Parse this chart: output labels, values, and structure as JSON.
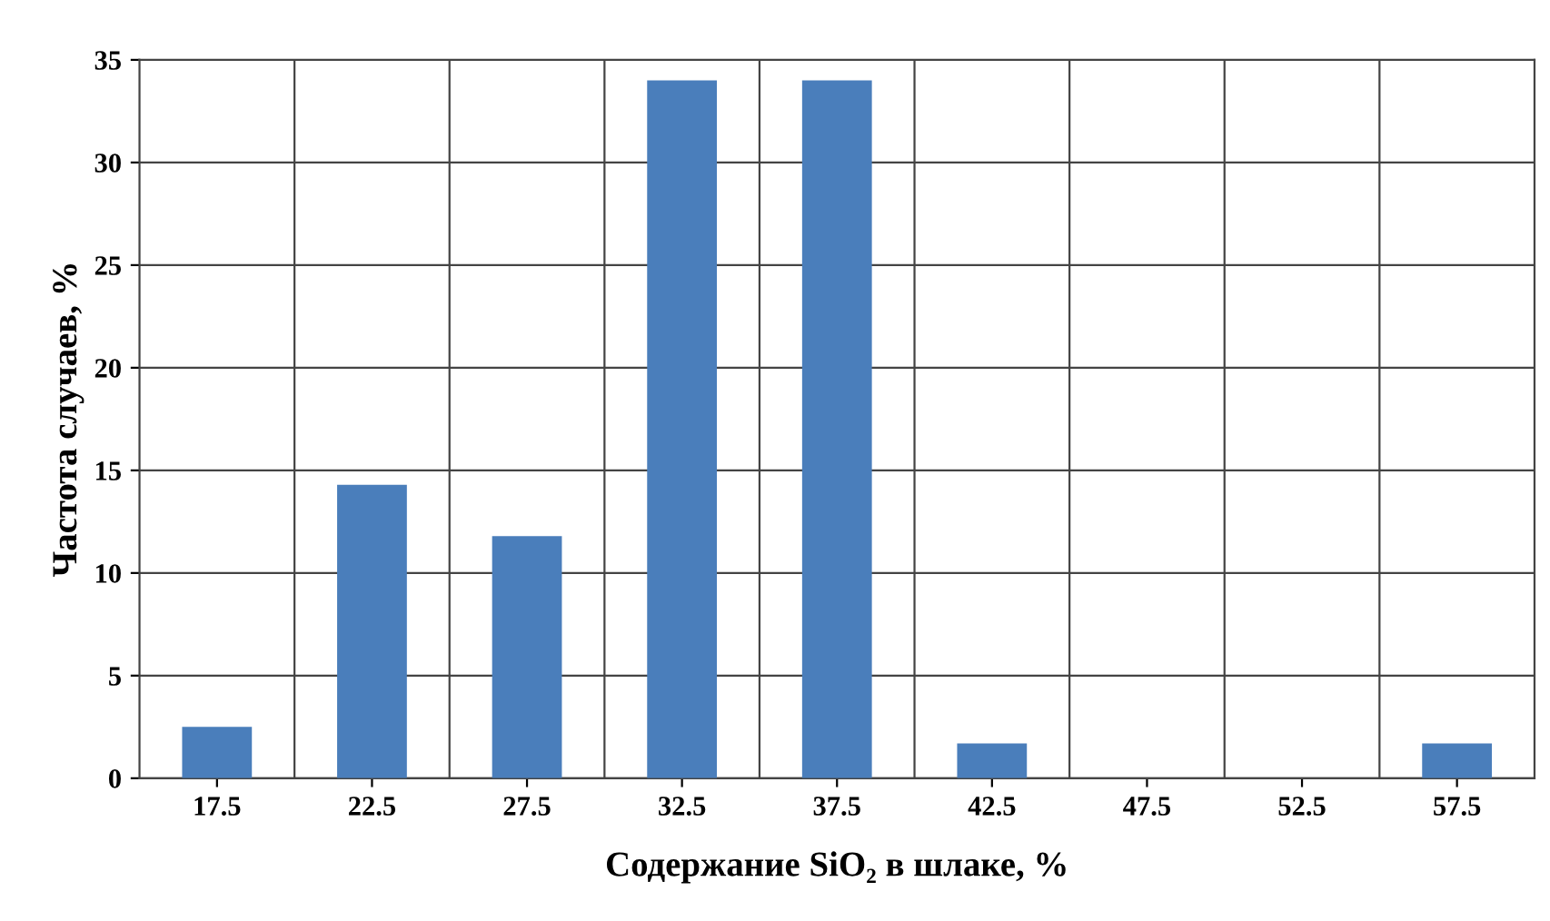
{
  "chart_data": {
    "type": "bar",
    "xlabel": "Содержание SiO₂ в шлаке, %",
    "ylabel": "Частота случаев, %",
    "categories": [
      "17.5",
      "22.5",
      "27.5",
      "32.5",
      "37.5",
      "42.5",
      "47.5",
      "52.5",
      "57.5"
    ],
    "values": [
      2.5,
      14.3,
      11.8,
      34,
      34,
      1.7,
      0,
      0,
      1.7
    ],
    "color": "#4a7ebb",
    "ylim": [
      0,
      35
    ],
    "yticks": [
      0,
      5,
      10,
      15,
      20,
      25,
      30,
      35
    ],
    "grid": true,
    "legend": false
  }
}
